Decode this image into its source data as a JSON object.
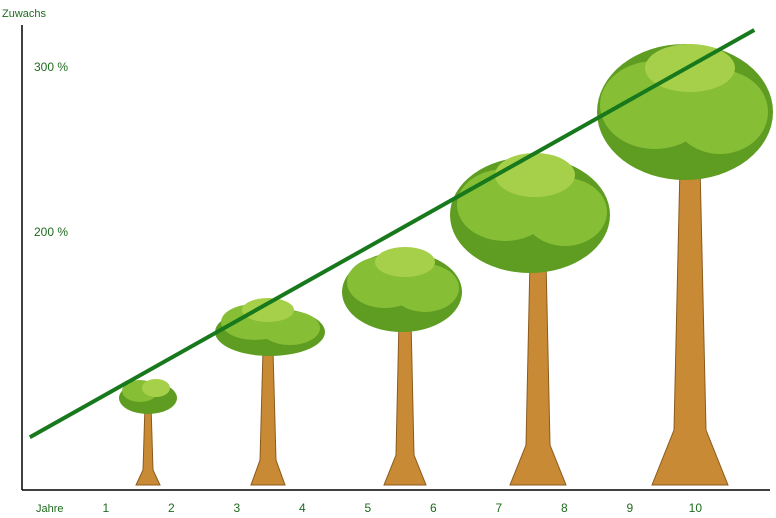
{
  "chart_data": {
    "type": "line",
    "y_label": "Zuwachs",
    "x_label": "Jahre",
    "x": [
      -0.16,
      10.9
    ],
    "values": [
      76,
      323
    ],
    "color": "#17781c",
    "xlim": [
      -0.28,
      11.14
    ],
    "xticks": [
      1,
      2,
      3,
      4,
      5,
      6,
      7,
      8,
      9,
      10
    ],
    "ylim": [
      44,
      326
    ],
    "yticks": [
      {
        "value": 200,
        "label": "200 %"
      },
      {
        "value": 300,
        "label": "300 %"
      }
    ]
  }
}
